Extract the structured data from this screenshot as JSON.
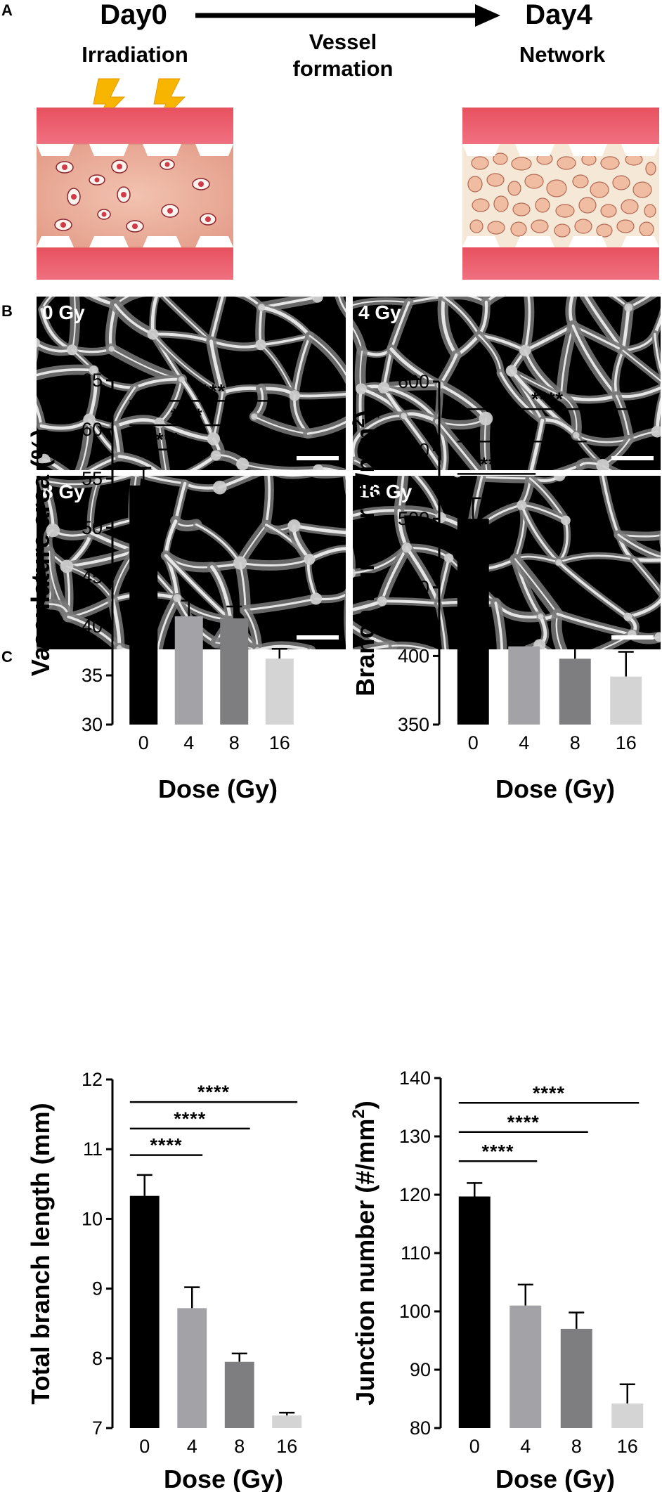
{
  "panel_letters": [
    "A",
    "B",
    "C"
  ],
  "schematic": {
    "day_start": "Day0",
    "day_end": "Day4",
    "step_left": "Irradiation",
    "step_middle_line1": "Vessel",
    "step_middle_line2": "formation",
    "step_right": "Network",
    "colors": {
      "channel": "#e8515f",
      "tissue": "#e8a18c",
      "network_bg": "#f6e8d6",
      "network_fill": "#f2c1a6",
      "bolt": "#f7b500"
    },
    "icons": [
      "lightning-bolt-icon",
      "right-arrow-icon"
    ]
  },
  "micrographs": {
    "labels": [
      "0 Gy",
      "4 Gy",
      "8 Gy",
      "16 Gy"
    ],
    "scale_bar": true
  },
  "chart_data": [
    {
      "type": "bar",
      "categories": [
        "0",
        "4",
        "8",
        "16"
      ],
      "values": [
        54.3,
        41.0,
        40.8,
        36.7
      ],
      "errors": [
        1.8,
        1.6,
        1.2,
        1.0
      ],
      "colors": [
        "#000000",
        "#a3a3a7",
        "#7e7e80",
        "#d4d4d4"
      ],
      "xlabel": "Dose (Gy)",
      "ylabel": "Vasculature area (%)",
      "ylim": [
        30,
        65
      ],
      "yticks": [
        "30",
        "35",
        "40",
        "45",
        "50",
        "55",
        "60",
        "65"
      ],
      "significance": [
        {
          "from": "0",
          "to": "4",
          "label": "****"
        },
        {
          "from": "0",
          "to": "8",
          "label": "****"
        },
        {
          "from": "0",
          "to": "16",
          "label": "****"
        }
      ]
    },
    {
      "type": "bar",
      "categories": [
        "0",
        "4",
        "8",
        "16"
      ],
      "values": [
        500,
        407,
        398,
        385
      ],
      "errors": [
        15,
        14,
        16,
        18
      ],
      "colors": [
        "#000000",
        "#a3a3a7",
        "#7e7e80",
        "#d4d4d4"
      ],
      "xlabel": "Dose (Gy)",
      "ylabel_main": "Branch number (#/mm",
      "ylabel_sup": "2",
      "ylabel_end": ")",
      "ylim": [
        350,
        600
      ],
      "yticks": [
        "350",
        "400",
        "450",
        "500",
        "550",
        "600"
      ],
      "significance": [
        {
          "from": "0",
          "to": "4",
          "label": "****"
        },
        {
          "from": "0",
          "to": "8",
          "label": "****"
        },
        {
          "from": "0",
          "to": "16",
          "label": "****"
        }
      ]
    },
    {
      "type": "bar",
      "categories": [
        "0",
        "4",
        "8",
        "16"
      ],
      "values": [
        10.33,
        8.72,
        7.95,
        7.18
      ],
      "errors": [
        0.3,
        0.3,
        0.12,
        0.04
      ],
      "colors": [
        "#000000",
        "#a3a3a7",
        "#7e7e80",
        "#d4d4d4"
      ],
      "xlabel": "Dose (Gy)",
      "ylabel": "Total branch length (mm)",
      "ylim": [
        7,
        12
      ],
      "yticks": [
        "7",
        "8",
        "9",
        "10",
        "11",
        "12"
      ],
      "significance": [
        {
          "from": "0",
          "to": "4",
          "label": "****"
        },
        {
          "from": "0",
          "to": "8",
          "label": "****"
        },
        {
          "from": "0",
          "to": "16",
          "label": "****"
        }
      ]
    },
    {
      "type": "bar",
      "categories": [
        "0",
        "4",
        "8",
        "16"
      ],
      "values": [
        119.7,
        101.0,
        97.0,
        84.2
      ],
      "errors": [
        2.3,
        3.6,
        2.8,
        3.3
      ],
      "colors": [
        "#000000",
        "#a3a3a7",
        "#7e7e80",
        "#d4d4d4"
      ],
      "xlabel": "Dose (Gy)",
      "ylabel_main": "Junction number (#/mm",
      "ylabel_sup": "2",
      "ylabel_end": ")",
      "ylim": [
        80,
        140
      ],
      "yticks": [
        "80",
        "90",
        "100",
        "110",
        "120",
        "130",
        "140"
      ],
      "significance": [
        {
          "from": "0",
          "to": "4",
          "label": "****"
        },
        {
          "from": "0",
          "to": "8",
          "label": "****"
        },
        {
          "from": "0",
          "to": "16",
          "label": "****"
        }
      ]
    }
  ]
}
